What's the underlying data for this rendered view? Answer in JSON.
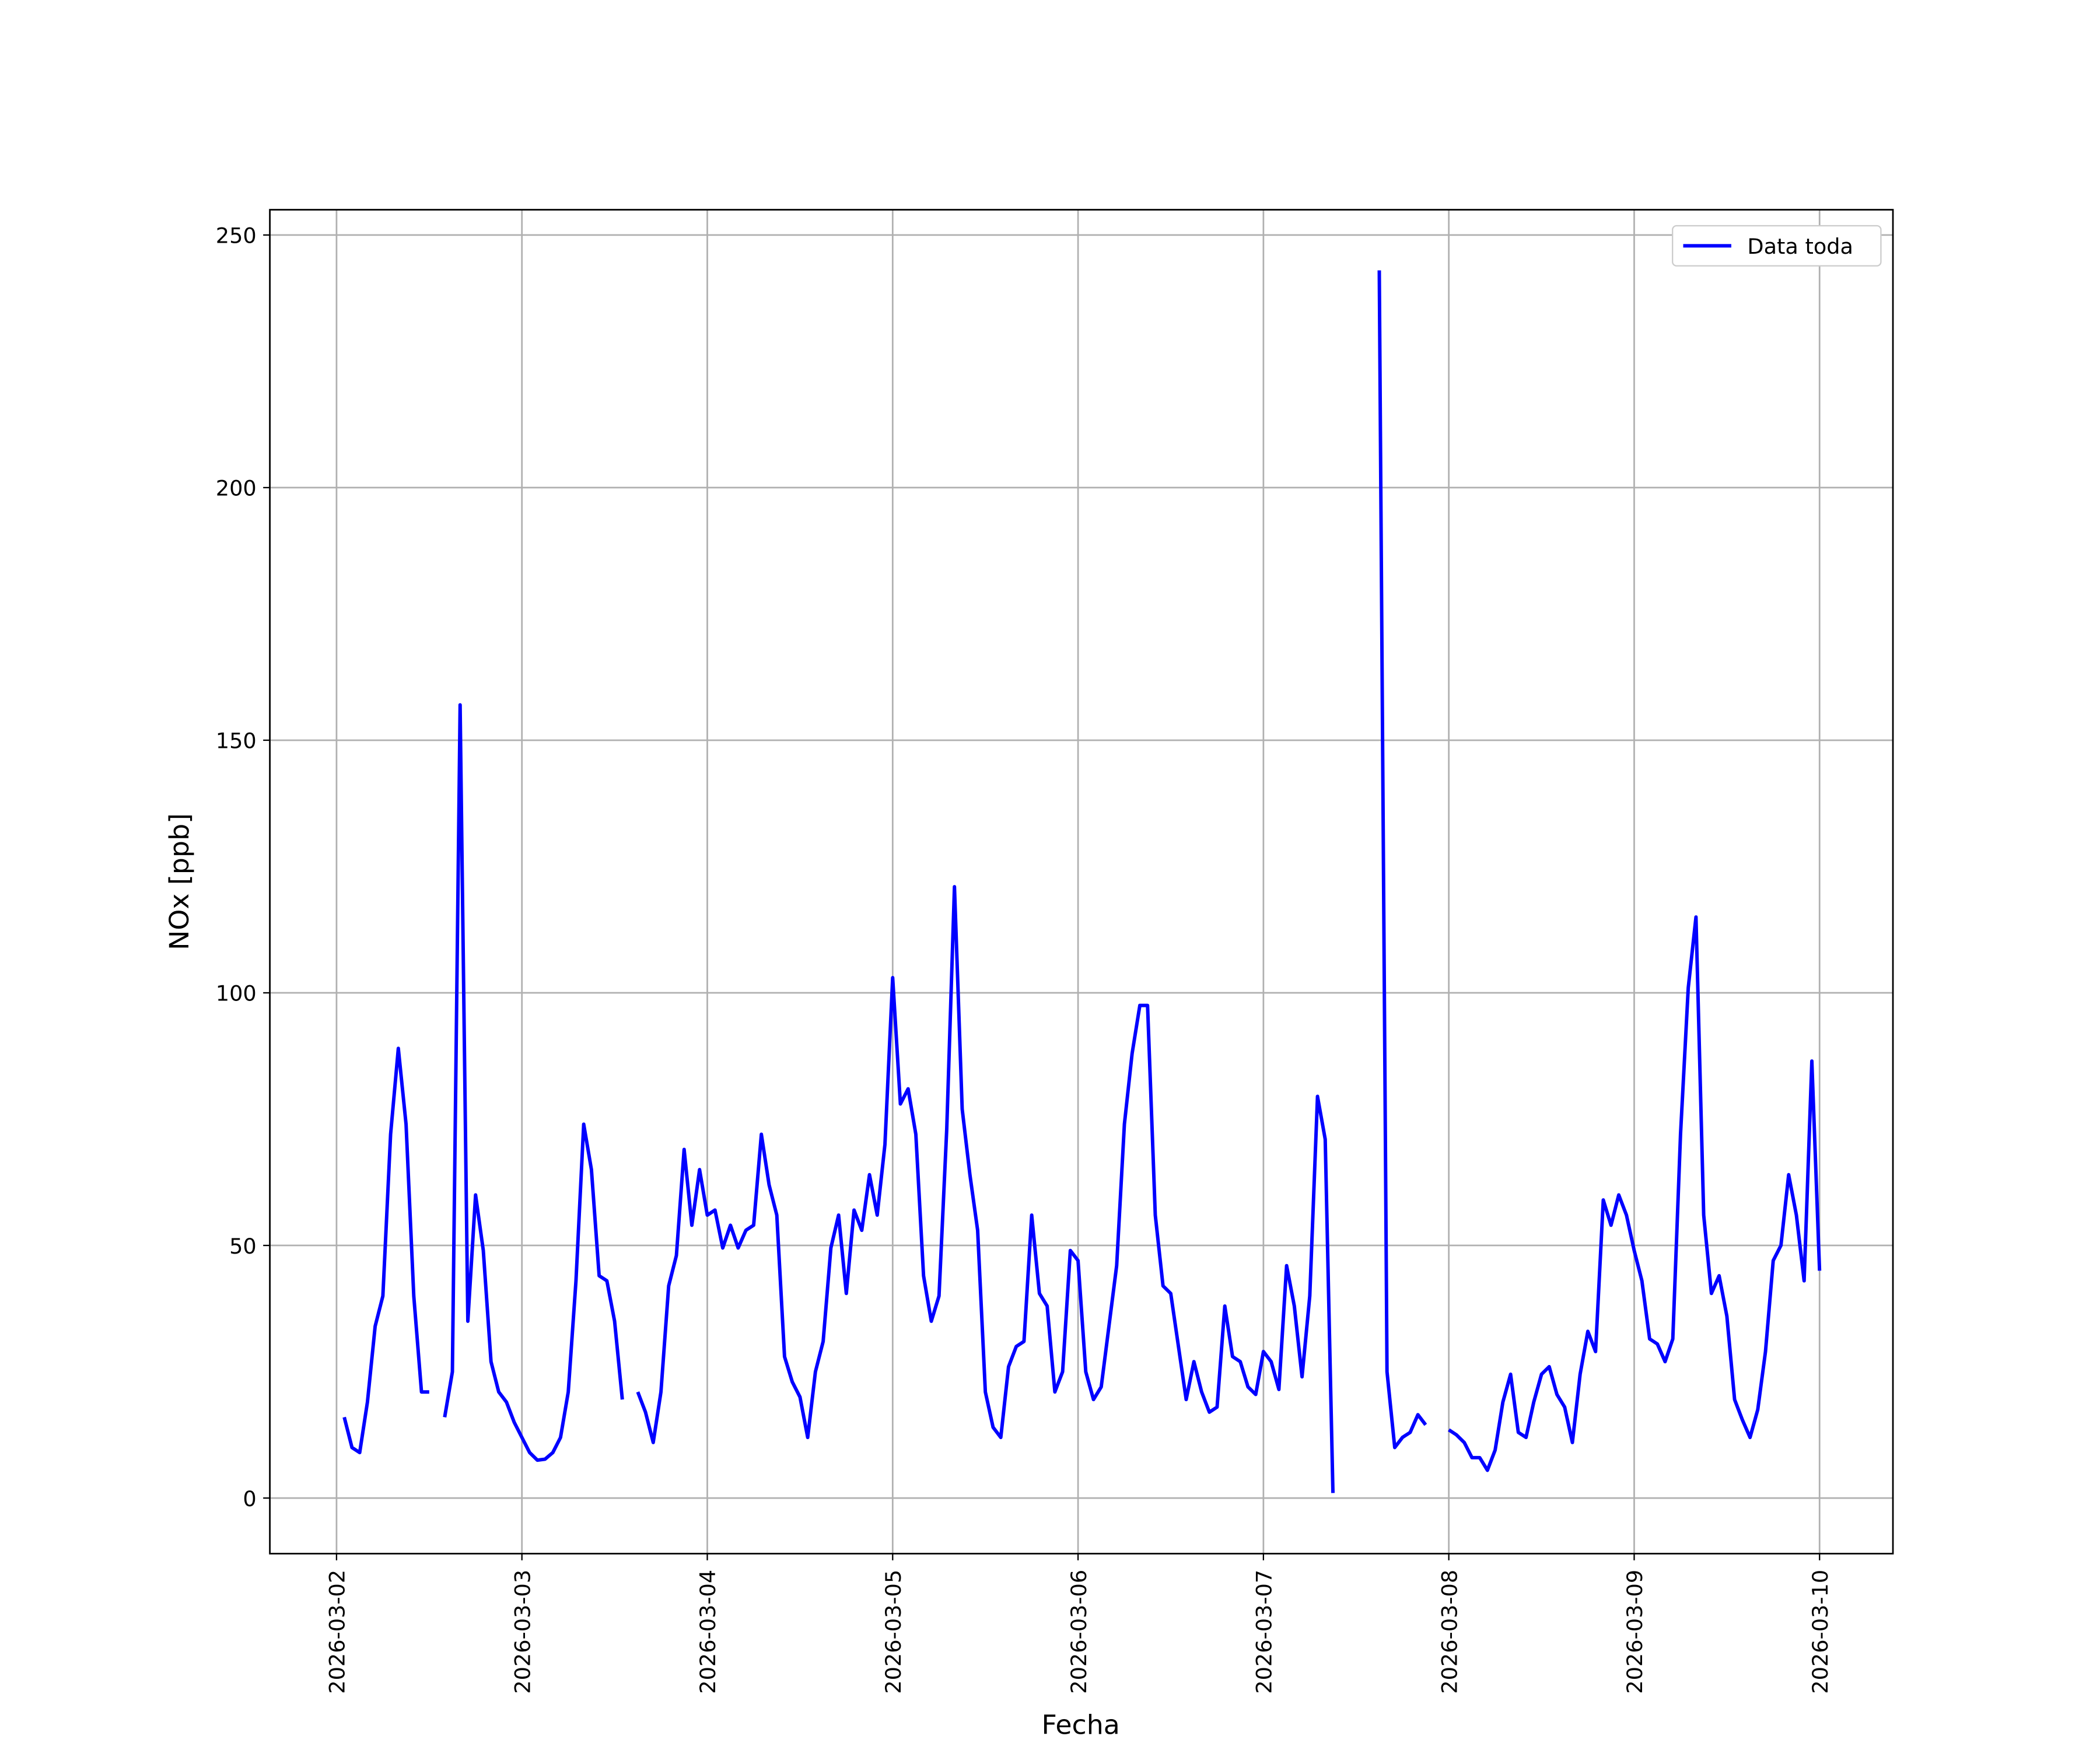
{
  "chart_data": {
    "type": "line",
    "x_label": "Fecha",
    "y_label": "NOx [ppb]",
    "xlim": [
      "2026-03-01 15:22",
      "2026-03-10 09:30"
    ],
    "xticks": [
      "2026-03-02",
      "2026-03-03",
      "2026-03-04",
      "2026-03-05",
      "2026-03-06",
      "2026-03-07",
      "2026-03-08",
      "2026-03-09",
      "2026-03-10"
    ],
    "ylim": [
      -11,
      255
    ],
    "yticks": [
      0,
      50,
      100,
      150,
      200,
      250
    ],
    "grid": true,
    "legend": "upper right",
    "x": [
      "2026-03-02 01:00",
      "2026-03-02 02:00",
      "2026-03-02 03:00",
      "2026-03-02 04:00",
      "2026-03-02 05:00",
      "2026-03-02 06:00",
      "2026-03-02 07:00",
      "2026-03-02 08:00",
      "2026-03-02 09:00",
      "2026-03-02 10:00",
      "2026-03-02 11:00",
      "2026-03-02 12:00",
      "2026-03-02 13:00",
      "2026-03-02 14:00",
      "2026-03-02 15:00",
      "2026-03-02 16:00",
      "2026-03-02 17:00",
      "2026-03-02 18:00",
      "2026-03-02 19:00",
      "2026-03-02 20:00",
      "2026-03-02 21:00",
      "2026-03-02 22:00",
      "2026-03-02 23:00",
      "2026-03-03 00:00",
      "2026-03-03 01:00",
      "2026-03-03 02:00",
      "2026-03-03 03:00",
      "2026-03-03 04:00",
      "2026-03-03 05:00",
      "2026-03-03 06:00",
      "2026-03-03 07:00",
      "2026-03-03 08:00",
      "2026-03-03 09:00",
      "2026-03-03 10:00",
      "2026-03-03 11:00",
      "2026-03-03 12:00",
      "2026-03-03 13:00",
      "2026-03-03 14:00",
      "2026-03-03 15:00",
      "2026-03-03 16:00",
      "2026-03-03 17:00",
      "2026-03-03 18:00",
      "2026-03-03 19:00",
      "2026-03-03 20:00",
      "2026-03-03 21:00",
      "2026-03-03 22:00",
      "2026-03-03 23:00",
      "2026-03-04 00:00",
      "2026-03-04 01:00",
      "2026-03-04 02:00",
      "2026-03-04 03:00",
      "2026-03-04 04:00",
      "2026-03-04 05:00",
      "2026-03-04 06:00",
      "2026-03-04 07:00",
      "2026-03-04 08:00",
      "2026-03-04 09:00",
      "2026-03-04 10:00",
      "2026-03-04 11:00",
      "2026-03-04 12:00",
      "2026-03-04 13:00",
      "2026-03-04 14:00",
      "2026-03-04 15:00",
      "2026-03-04 16:00",
      "2026-03-04 17:00",
      "2026-03-04 18:00",
      "2026-03-04 19:00",
      "2026-03-04 20:00",
      "2026-03-04 21:00",
      "2026-03-04 22:00",
      "2026-03-04 23:00",
      "2026-03-05 00:00",
      "2026-03-05 01:00",
      "2026-03-05 02:00",
      "2026-03-05 03:00",
      "2026-03-05 04:00",
      "2026-03-05 05:00",
      "2026-03-05 06:00",
      "2026-03-05 07:00",
      "2026-03-05 08:00",
      "2026-03-05 09:00",
      "2026-03-05 10:00",
      "2026-03-05 11:00",
      "2026-03-05 12:00",
      "2026-03-05 13:00",
      "2026-03-05 14:00",
      "2026-03-05 15:00",
      "2026-03-05 16:00",
      "2026-03-05 17:00",
      "2026-03-05 18:00",
      "2026-03-05 19:00",
      "2026-03-05 20:00",
      "2026-03-05 21:00",
      "2026-03-05 22:00",
      "2026-03-05 23:00",
      "2026-03-06 00:00",
      "2026-03-06 01:00",
      "2026-03-06 02:00",
      "2026-03-06 03:00",
      "2026-03-06 04:00",
      "2026-03-06 05:00",
      "2026-03-06 06:00",
      "2026-03-06 07:00",
      "2026-03-06 08:00",
      "2026-03-06 09:00",
      "2026-03-06 10:00",
      "2026-03-06 11:00",
      "2026-03-06 12:00",
      "2026-03-06 13:00",
      "2026-03-06 14:00",
      "2026-03-06 15:00",
      "2026-03-06 16:00",
      "2026-03-06 17:00",
      "2026-03-06 18:00",
      "2026-03-06 19:00",
      "2026-03-06 20:00",
      "2026-03-06 21:00",
      "2026-03-06 22:00",
      "2026-03-06 23:00",
      "2026-03-07 00:00",
      "2026-03-07 01:00",
      "2026-03-07 02:00",
      "2026-03-07 03:00",
      "2026-03-07 04:00",
      "2026-03-07 05:00",
      "2026-03-07 06:00",
      "2026-03-07 07:00",
      "2026-03-07 08:00",
      "2026-03-07 09:00",
      "2026-03-07 10:00",
      "2026-03-07 11:00",
      "2026-03-07 12:00",
      "2026-03-07 13:00",
      "2026-03-07 14:00",
      "2026-03-07 15:00",
      "2026-03-07 16:00",
      "2026-03-07 17:00",
      "2026-03-07 18:00",
      "2026-03-07 19:00",
      "2026-03-07 20:00",
      "2026-03-07 21:00",
      "2026-03-07 22:00",
      "2026-03-07 23:00",
      "2026-03-08 00:00",
      "2026-03-08 01:00",
      "2026-03-08 02:00",
      "2026-03-08 03:00",
      "2026-03-08 04:00",
      "2026-03-08 05:00",
      "2026-03-08 06:00",
      "2026-03-08 07:00",
      "2026-03-08 08:00",
      "2026-03-08 09:00",
      "2026-03-08 10:00",
      "2026-03-08 11:00",
      "2026-03-08 12:00",
      "2026-03-08 13:00",
      "2026-03-08 14:00",
      "2026-03-08 15:00",
      "2026-03-08 16:00",
      "2026-03-08 17:00",
      "2026-03-08 18:00",
      "2026-03-08 19:00",
      "2026-03-08 20:00",
      "2026-03-08 21:00",
      "2026-03-08 22:00",
      "2026-03-08 23:00",
      "2026-03-09 00:00",
      "2026-03-09 01:00",
      "2026-03-09 02:00",
      "2026-03-09 03:00",
      "2026-03-09 04:00",
      "2026-03-09 05:00",
      "2026-03-09 06:00",
      "2026-03-09 07:00",
      "2026-03-09 08:00",
      "2026-03-09 09:00",
      "2026-03-09 10:00",
      "2026-03-09 11:00",
      "2026-03-09 12:00",
      "2026-03-09 13:00",
      "2026-03-09 14:00",
      "2026-03-09 15:00",
      "2026-03-09 16:00",
      "2026-03-09 17:00",
      "2026-03-09 18:00",
      "2026-03-09 19:00",
      "2026-03-09 20:00",
      "2026-03-09 21:00",
      "2026-03-09 22:00",
      "2026-03-09 23:00",
      "2026-03-10 00:00"
    ],
    "series": [
      {
        "name": "Data toda",
        "color": "#0000ff",
        "values": [
          16,
          10,
          9,
          19,
          34,
          40,
          72,
          89,
          74,
          40,
          21,
          21,
          null,
          16,
          25,
          157,
          35,
          60,
          49,
          27,
          21,
          19,
          15,
          12,
          9,
          7.5,
          7.7,
          9,
          12,
          21,
          43,
          74,
          65,
          44,
          43,
          35,
          19.5,
          null,
          21,
          17,
          11,
          21,
          42,
          48,
          69,
          54,
          65,
          56,
          57,
          49.5,
          54,
          49.5,
          53,
          54,
          72,
          62,
          56,
          28,
          23,
          20,
          12,
          25,
          31,
          49.5,
          56,
          40.5,
          57,
          53,
          64,
          56,
          70,
          103,
          78,
          81,
          72,
          44,
          35,
          40,
          73,
          121,
          77,
          64,
          53,
          21,
          14,
          12,
          26,
          30,
          31,
          56,
          40.5,
          38,
          21,
          25,
          49,
          47,
          25,
          19.5,
          22,
          34,
          46,
          74,
          88,
          97.5,
          97.5,
          56,
          42,
          40.5,
          30,
          19.5,
          27,
          21,
          17,
          18,
          38,
          28,
          27,
          22,
          20.5,
          29,
          27,
          21.5,
          46,
          38,
          24,
          40,
          79.5,
          71,
          1,
          null,
          null,
          null,
          null,
          null,
          243,
          25,
          10,
          12,
          13,
          16.5,
          14.5,
          null,
          null,
          13.5,
          12.5,
          11,
          8,
          8,
          5.5,
          9.5,
          19,
          24.5,
          13,
          12,
          19,
          24.5,
          26,
          20.5,
          18,
          11,
          24.5,
          33,
          29,
          59,
          54,
          60,
          56,
          49,
          43,
          31.5,
          30.5,
          27,
          31.5,
          72,
          101,
          115,
          56,
          40.5,
          44,
          36,
          19.5,
          15.5,
          12,
          17.5,
          29,
          47,
          50,
          64,
          56,
          43,
          86.5,
          45
        ]
      }
    ]
  }
}
